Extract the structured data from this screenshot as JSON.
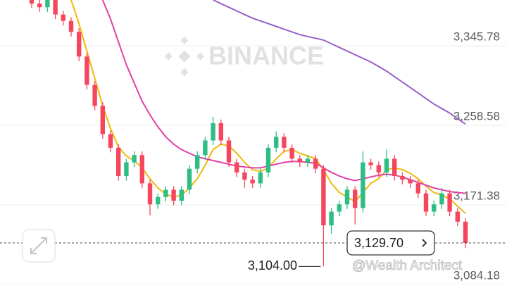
{
  "chart_data": {
    "type": "candlestick",
    "watermark": "BINANCE",
    "credit": "@Wealth Architect",
    "up_color": "#2ebd85",
    "down_color": "#f6465d",
    "ylim": [
      3084.18,
      3395.94
    ],
    "yticks": [
      {
        "value": 3345.78,
        "label": "3,345.78"
      },
      {
        "value": 3258.58,
        "label": "3,258.58"
      },
      {
        "value": 3171.38,
        "label": "3,171.38"
      },
      {
        "value": 3084.18,
        "label": "3,084.18"
      }
    ],
    "grid": true,
    "current_price": {
      "value": 3129.7,
      "label": "3,129.70"
    },
    "low_marker": {
      "value": 3104.0,
      "label": "3,104.00"
    },
    "open": [
      3398,
      3392,
      3388,
      3396,
      3380,
      3373,
      3361,
      3334,
      3303,
      3280,
      3249,
      3234,
      3203,
      3218,
      3226,
      3195,
      3172,
      3180,
      3188,
      3176,
      3188,
      3211,
      3226,
      3242,
      3261,
      3242,
      3218,
      3207,
      3199,
      3195,
      3207,
      3234,
      3246,
      3234,
      3222,
      3218,
      3222,
      3211,
      3149,
      3164,
      3172,
      3188,
      3168,
      3218,
      3215,
      3207,
      3222,
      3203,
      3199,
      3195,
      3184,
      3164,
      3172,
      3184,
      3164,
      3153
    ],
    "high": [
      3402,
      3396,
      3400,
      3400,
      3384,
      3377,
      3365,
      3338,
      3307,
      3284,
      3253,
      3238,
      3222,
      3230,
      3230,
      3199,
      3184,
      3192,
      3192,
      3192,
      3215,
      3230,
      3246,
      3268,
      3265,
      3246,
      3222,
      3211,
      3203,
      3211,
      3238,
      3252,
      3250,
      3238,
      3226,
      3226,
      3226,
      3215,
      3168,
      3176,
      3192,
      3192,
      3230,
      3222,
      3219,
      3232,
      3226,
      3207,
      3203,
      3199,
      3188,
      3176,
      3190,
      3188,
      3168,
      3157
    ],
    "low": [
      3387,
      3383,
      3383,
      3375,
      3368,
      3356,
      3329,
      3298,
      3275,
      3244,
      3229,
      3198,
      3198,
      3213,
      3190,
      3160,
      3167,
      3175,
      3171,
      3171,
      3183,
      3206,
      3221,
      3237,
      3237,
      3213,
      3202,
      3190,
      3190,
      3190,
      3202,
      3229,
      3229,
      3217,
      3213,
      3213,
      3206,
      3104,
      3140,
      3159,
      3167,
      3150,
      3163,
      3210,
      3202,
      3202,
      3198,
      3194,
      3190,
      3179,
      3159,
      3159,
      3167,
      3159,
      3148,
      3124
    ],
    "close": [
      3392,
      3388,
      3396,
      3380,
      3373,
      3361,
      3334,
      3303,
      3280,
      3249,
      3234,
      3203,
      3218,
      3226,
      3195,
      3172,
      3180,
      3188,
      3176,
      3188,
      3211,
      3226,
      3242,
      3261,
      3242,
      3218,
      3207,
      3199,
      3195,
      3207,
      3234,
      3246,
      3234,
      3222,
      3218,
      3222,
      3211,
      3149,
      3164,
      3172,
      3188,
      3168,
      3218,
      3215,
      3207,
      3222,
      3203,
      3199,
      3195,
      3184,
      3164,
      3172,
      3184,
      3164,
      3153,
      3129.7
    ],
    "series": [
      {
        "color": "#f0b90b",
        "values": [
          null,
          null,
          null,
          null,
          null,
          3396,
          3370,
          3340,
          3310,
          3280,
          3255,
          3235,
          3225,
          3220,
          3212,
          3200,
          3190,
          3183,
          3180,
          3182,
          3190,
          3200,
          3215,
          3232,
          3238,
          3236,
          3228,
          3218,
          3210,
          3208,
          3212,
          3222,
          3230,
          3232,
          3228,
          3225,
          3222,
          3210,
          3195,
          3185,
          3180,
          3175,
          3185,
          3195,
          3200,
          3210,
          3212,
          3210,
          3206,
          3200,
          3192,
          3185,
          3182,
          3178,
          3170,
          3162
        ]
      },
      {
        "color": "#e040a8",
        "values": [
          null,
          null,
          null,
          null,
          null,
          null,
          null,
          null,
          null,
          3396,
          3375,
          3350,
          3325,
          3305,
          3285,
          3270,
          3257,
          3246,
          3238,
          3232,
          3228,
          3224,
          3222,
          3220,
          3218,
          3216,
          3214,
          3213,
          3212,
          3212,
          3214,
          3216,
          3218,
          3219,
          3219,
          3218,
          3217,
          3212,
          3207,
          3203,
          3200,
          3198,
          3200,
          3202,
          3204,
          3205,
          3204,
          3202,
          3199,
          3196,
          3193,
          3190,
          3188,
          3186,
          3185,
          3184
        ]
      },
      {
        "color": "#9561c8",
        "values": [
          null,
          null,
          null,
          null,
          null,
          null,
          null,
          null,
          null,
          null,
          null,
          null,
          null,
          null,
          null,
          null,
          null,
          null,
          null,
          null,
          null,
          null,
          null,
          3396,
          3392,
          3388,
          3384,
          3380,
          3376,
          3373,
          3370,
          3367,
          3364,
          3361,
          3358,
          3356,
          3354,
          3352,
          3348,
          3344,
          3340,
          3336,
          3332,
          3328,
          3323,
          3318,
          3312,
          3306,
          3300,
          3294,
          3288,
          3282,
          3277,
          3272,
          3266,
          3260
        ]
      }
    ]
  }
}
